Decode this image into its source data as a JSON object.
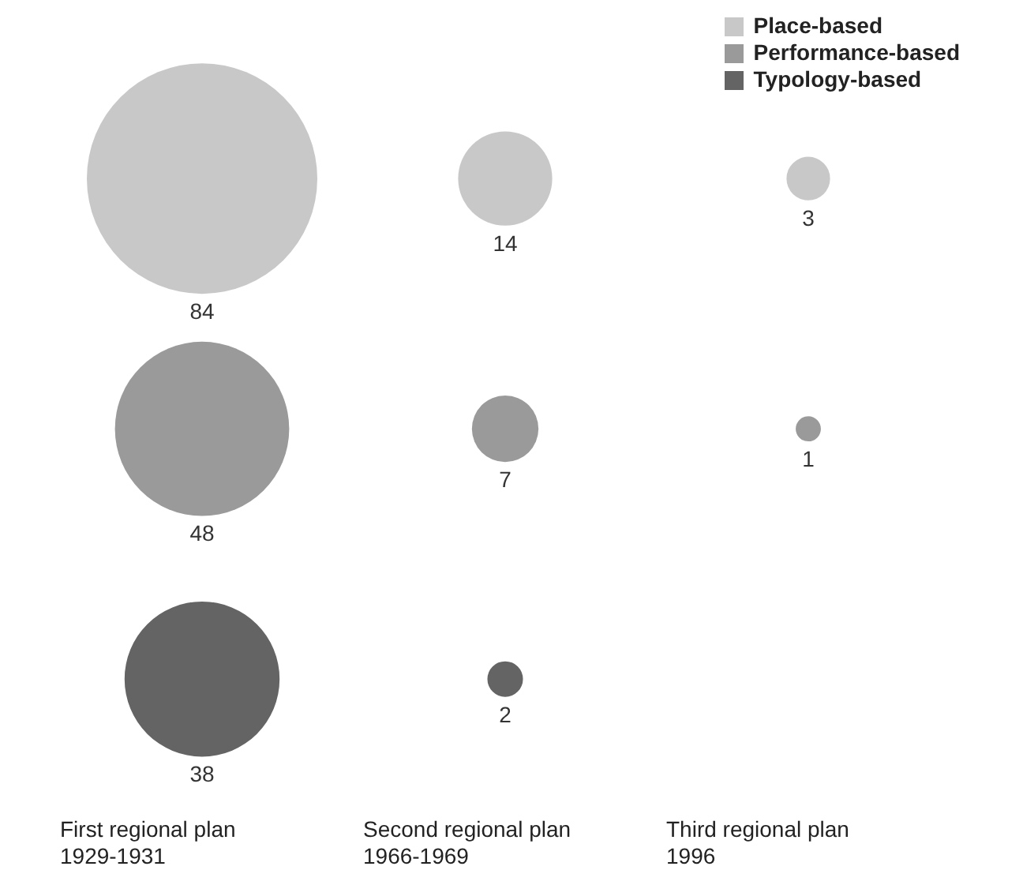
{
  "chart_data": {
    "type": "other",
    "categories": [
      "First regional plan\n1929-1931",
      "Second regional plan\n1966-1969",
      "Third regional plan\n1996"
    ],
    "series": [
      {
        "name": "Place-based",
        "color": "#c8c8c8",
        "values": [
          84,
          14,
          3
        ]
      },
      {
        "name": "Performance-based",
        "color": "#9a9a9a",
        "values": [
          48,
          7,
          1
        ]
      },
      {
        "name": "Typology-based",
        "color": "#646464",
        "values": [
          38,
          2,
          null
        ]
      }
    ],
    "data_labels": true,
    "legend": "top right"
  }
}
